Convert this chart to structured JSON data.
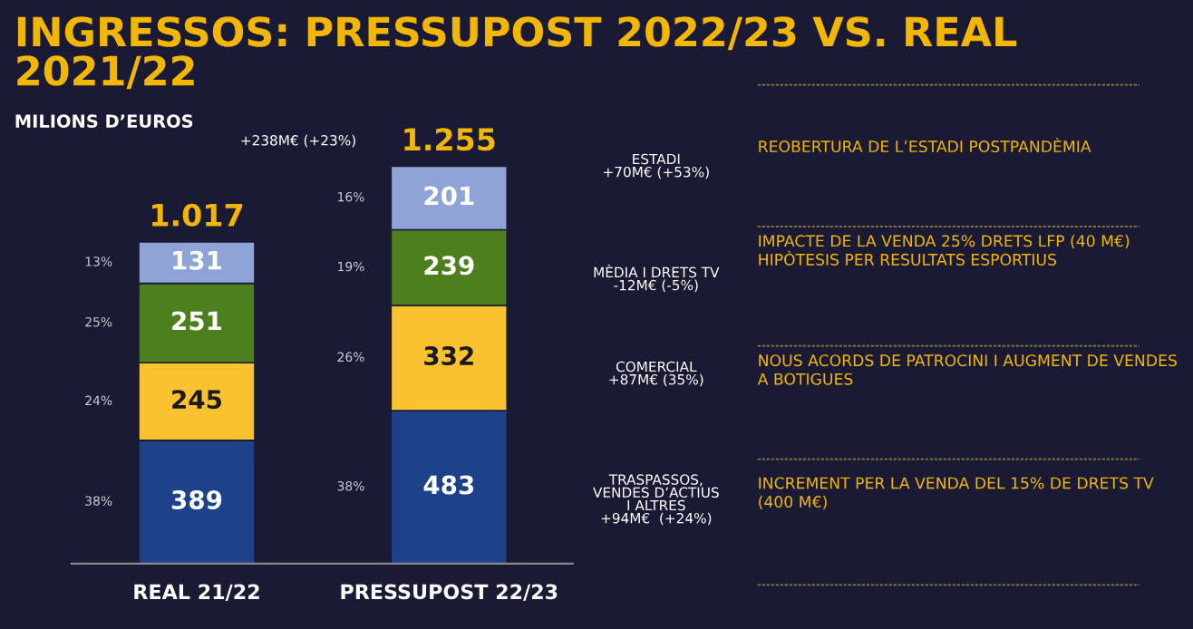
{
  "chart_data": {
    "type": "bar",
    "stacked": true,
    "title": "INGRESSOS: PRESSUPOST 2022/23 VS. REAL\n2021/22",
    "subtitle": "MILIONS D’EUROS",
    "categories": [
      "REAL 21/22",
      "PRESSUPOST 22/23"
    ],
    "series": [
      {
        "color": "#1d4289",
        "values": [
          389,
          483
        ]
      },
      {
        "color": "#f9c22e",
        "values": [
          245,
          332
        ]
      },
      {
        "color": "#4e7f1f",
        "values": [
          251,
          239
        ]
      },
      {
        "color": "#8fa3d6",
        "values": [
          131,
          201
        ]
      }
    ],
    "data_labels": true,
    "totals": [
      "1.017",
      "1.255"
    ],
    "tick_labels": "x",
    "annotations": [
      "+238M€ (+23%)",
      "ESTADI\n+70M€ (+53%)",
      "MÈDIA I DRETS TV\n-12M€ (-5%)",
      "COMERCIAL\n+87M€ (35%)",
      "TRASPASSOS,\nVENDES D’ACTIUS\nI ALTRES\n+94M€  (+24%)",
      "REOBERTURA DE L’ESTADI POSTPANDÈMIA",
      "IMPACTE DE LA VENDA 25% DRETS LFP (40 M€)\nHIPÒTESIS PER RESULTATS ESPORTIUS",
      "NOUS ACORDS DE PATROCINI I AUGMENT DE VENDES\nA BOTIGUES",
      "INCREMENT PER LA VENDA DEL 15% DE DRETS TV\n(400 M€)",
      "38%",
      "24%",
      "25%",
      "13%",
      "38%",
      "26%",
      "19%",
      "16%"
    ]
  }
}
